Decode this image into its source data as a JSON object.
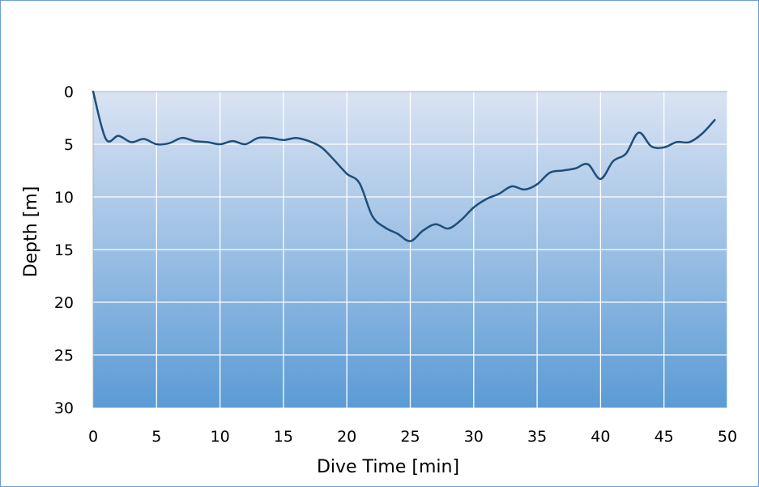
{
  "chart_data": {
    "type": "line",
    "title": "",
    "xlabel": "Dive Time [min]",
    "ylabel": "Depth [m]",
    "xlim": [
      0,
      50
    ],
    "ylim": [
      0,
      30
    ],
    "y_inverted": true,
    "grid": true,
    "legend": "none",
    "x_ticks": [
      "0",
      "5",
      "10",
      "15",
      "20",
      "25",
      "30",
      "35",
      "40",
      "45",
      "50"
    ],
    "y_ticks": [
      "0",
      "5",
      "10",
      "15",
      "20",
      "25",
      "30"
    ],
    "series": [
      {
        "name": "Depth",
        "color": "#1f4e79",
        "x": [
          0,
          1,
          2,
          3,
          4,
          5,
          6,
          7,
          8,
          9,
          10,
          11,
          12,
          13,
          14,
          15,
          16,
          17,
          18,
          19,
          20,
          21,
          22,
          23,
          24,
          25,
          26,
          27,
          28,
          29,
          30,
          31,
          32,
          33,
          34,
          35,
          36,
          37,
          38,
          39,
          40,
          41,
          42,
          43,
          44,
          45,
          46,
          47,
          48,
          49
        ],
        "values": [
          0,
          4.5,
          4.2,
          4.8,
          4.5,
          5.0,
          4.9,
          4.4,
          4.7,
          4.8,
          5.0,
          4.7,
          5.0,
          4.4,
          4.4,
          4.6,
          4.4,
          4.7,
          5.3,
          6.5,
          7.8,
          8.7,
          11.8,
          12.9,
          13.5,
          14.2,
          13.2,
          12.6,
          13.0,
          12.2,
          11.0,
          10.2,
          9.7,
          9.0,
          9.3,
          8.8,
          7.7,
          7.5,
          7.3,
          6.9,
          8.3,
          6.6,
          5.9,
          3.9,
          5.2,
          5.3,
          4.8,
          4.8,
          4.0,
          2.7
        ]
      }
    ]
  },
  "colors": {
    "plot_top": "#dae3f3",
    "plot_bottom": "#5b9bd5",
    "grid": "#ffffff",
    "frame_border": "#6a9fd4",
    "line": "#1f4e79"
  }
}
